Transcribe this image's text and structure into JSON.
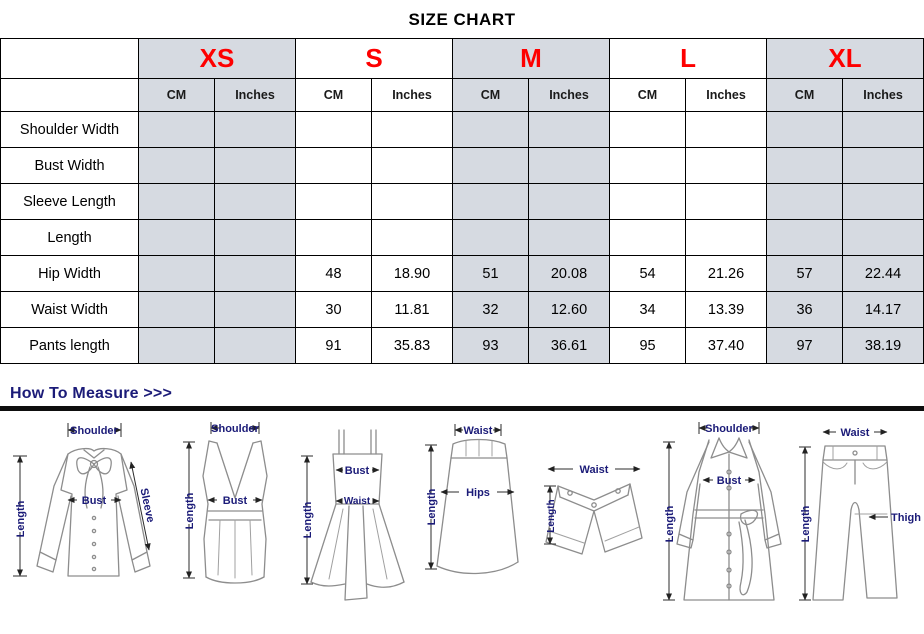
{
  "title": "SIZE CHART",
  "colors": {
    "size_label_red": "#fe0000",
    "heading_navy": "#1b1b78",
    "header_fill_gray": "#d6dae1"
  },
  "table": {
    "sizes": [
      "XS",
      "S",
      "M",
      "L",
      "XL"
    ],
    "unit_headers": [
      "CM",
      "Inches"
    ],
    "rows": [
      {
        "label": "Shoulder Width",
        "values": [
          "",
          "",
          "",
          "",
          "",
          "",
          "",
          "",
          "",
          ""
        ]
      },
      {
        "label": "Bust Width",
        "values": [
          "",
          "",
          "",
          "",
          "",
          "",
          "",
          "",
          "",
          ""
        ]
      },
      {
        "label": "Sleeve Length",
        "values": [
          "",
          "",
          "",
          "",
          "",
          "",
          "",
          "",
          "",
          ""
        ]
      },
      {
        "label": "Length",
        "values": [
          "",
          "",
          "",
          "",
          "",
          "",
          "",
          "",
          "",
          ""
        ]
      },
      {
        "label": "Hip Width",
        "values": [
          "",
          "",
          "48",
          "18.90",
          "51",
          "20.08",
          "54",
          "21.26",
          "57",
          "22.44"
        ]
      },
      {
        "label": "Waist Width",
        "values": [
          "",
          "",
          "30",
          "11.81",
          "32",
          "12.60",
          "34",
          "13.39",
          "36",
          "14.17"
        ]
      },
      {
        "label": "Pants length",
        "values": [
          "",
          "",
          "91",
          "35.83",
          "93",
          "36.61",
          "95",
          "37.40",
          "97",
          "38.19"
        ]
      }
    ]
  },
  "measure": {
    "heading": "How To Measure >>>",
    "figures": [
      {
        "name": "blouse",
        "labels": {
          "shoulder": "Shoulder",
          "length": "Length",
          "bust": "Bust",
          "sleeve": "Sleeve"
        }
      },
      {
        "name": "vest",
        "labels": {
          "shoulder": "Shoulder",
          "length": "Length",
          "bust": "Bust"
        }
      },
      {
        "name": "dress",
        "labels": {
          "bust": "Bust",
          "waist": "Waist",
          "length": "Length"
        }
      },
      {
        "name": "skirt",
        "labels": {
          "waist": "Waist",
          "hips": "Hips",
          "length": "Length"
        }
      },
      {
        "name": "shorts",
        "labels": {
          "waist": "Waist",
          "length": "Length"
        }
      },
      {
        "name": "coat",
        "labels": {
          "shoulder": "Shoulder",
          "bust": "Bust",
          "length": "Length"
        }
      },
      {
        "name": "jeans",
        "labels": {
          "waist": "Waist",
          "thigh": "Thigh",
          "length": "Length"
        }
      }
    ]
  }
}
